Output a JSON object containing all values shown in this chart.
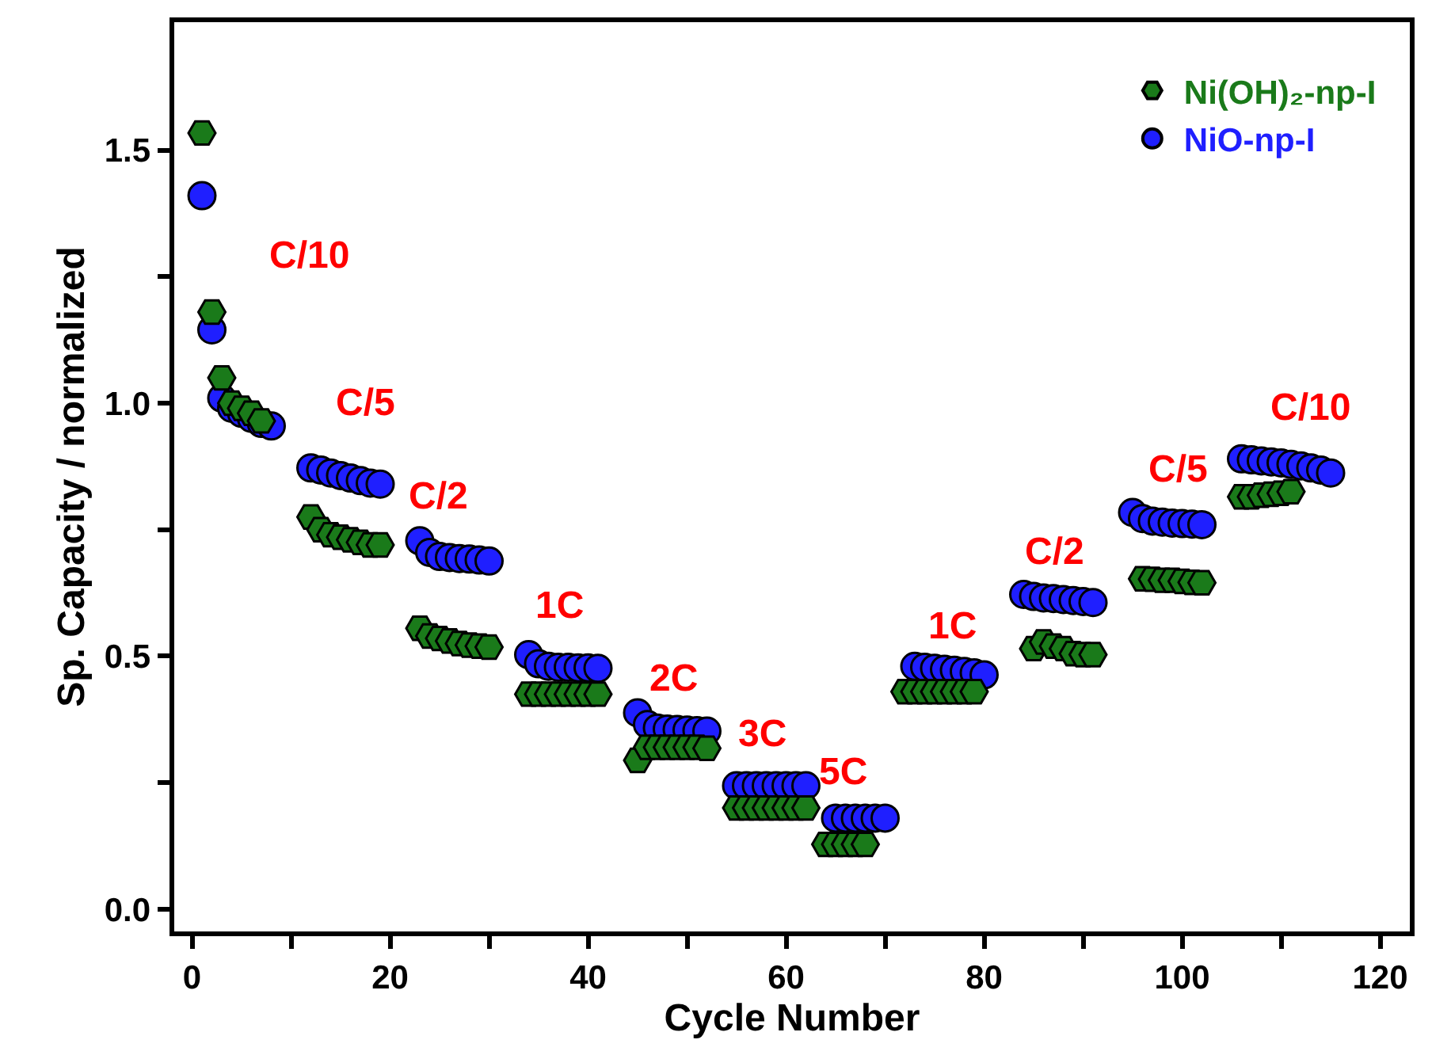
{
  "chart_data": {
    "type": "scatter",
    "xlabel": "Cycle Number",
    "ylabel": "Sp. Capacity / normalized",
    "xlim": [
      -1.8,
      123
    ],
    "ylim": [
      -0.044,
      1.753
    ],
    "xticks": [
      0,
      {
        "value": 10,
        "label": null
      },
      20,
      {
        "value": 30,
        "label": null
      },
      40,
      {
        "value": 50,
        "label": null
      },
      60,
      {
        "value": 70,
        "label": null
      },
      80,
      {
        "value": 90,
        "label": null
      },
      100,
      {
        "value": 110,
        "label": null
      },
      120
    ],
    "yticks": [
      {
        "value": 0,
        "label": "0.0"
      },
      {
        "value": 0.25,
        "label": null
      },
      0.5,
      {
        "value": 0.75,
        "label": null
      },
      {
        "value": 1,
        "label": "1.0"
      },
      {
        "value": 1.25,
        "label": null
      },
      1.5
    ],
    "grid": false,
    "legend": "top right",
    "series": [
      {
        "name": "Ni(OH)₂-np-I",
        "color": "#1a7a1a",
        "x": [
          1,
          2,
          3,
          4,
          5,
          6,
          7,
          12,
          13,
          14,
          15,
          16,
          17,
          18,
          19,
          23,
          24,
          25,
          26,
          27,
          28,
          29,
          30,
          34,
          35,
          36,
          37,
          38,
          39,
          40,
          41,
          45,
          46,
          47,
          48,
          49,
          50,
          51,
          52,
          55,
          56,
          57,
          58,
          59,
          60,
          61,
          62,
          64,
          65,
          66,
          67,
          68,
          72,
          73,
          74,
          75,
          76,
          77,
          78,
          79,
          85,
          86,
          87,
          88,
          89,
          90,
          91,
          96,
          97,
          98,
          99,
          100,
          101,
          102,
          106,
          107,
          108,
          109,
          110,
          111
        ],
        "values": [
          1.534,
          1.18,
          1.05,
          1.0,
          0.99,
          0.98,
          0.965,
          0.775,
          0.75,
          0.74,
          0.735,
          0.73,
          0.725,
          0.72,
          0.72,
          0.555,
          0.54,
          0.535,
          0.53,
          0.525,
          0.522,
          0.52,
          0.518,
          0.425,
          0.425,
          0.425,
          0.425,
          0.425,
          0.425,
          0.425,
          0.425,
          0.294,
          0.32,
          0.32,
          0.32,
          0.32,
          0.32,
          0.32,
          0.318,
          0.2,
          0.2,
          0.2,
          0.2,
          0.2,
          0.2,
          0.2,
          0.2,
          0.128,
          0.128,
          0.128,
          0.128,
          0.128,
          0.43,
          0.43,
          0.43,
          0.43,
          0.43,
          0.43,
          0.43,
          0.43,
          0.515,
          0.528,
          0.52,
          0.515,
          0.505,
          0.503,
          0.503,
          0.653,
          0.652,
          0.65,
          0.65,
          0.648,
          0.646,
          0.645,
          0.815,
          0.815,
          0.818,
          0.82,
          0.822,
          0.825
        ]
      },
      {
        "name": "NiO-np-I",
        "color": "#1f1fff",
        "marker": "circle",
        "x": [
          1,
          2,
          3,
          4,
          5,
          6,
          7,
          8,
          12,
          13,
          14,
          15,
          16,
          17,
          18,
          19,
          23,
          24,
          25,
          26,
          27,
          28,
          29,
          30,
          34,
          35,
          36,
          37,
          38,
          39,
          40,
          41,
          45,
          46,
          47,
          48,
          49,
          50,
          51,
          52,
          55,
          56,
          57,
          58,
          59,
          60,
          61,
          62,
          65,
          66,
          67,
          68,
          69,
          70,
          73,
          74,
          75,
          76,
          77,
          78,
          79,
          80,
          84,
          85,
          86,
          87,
          88,
          89,
          90,
          91,
          95,
          96,
          97,
          98,
          99,
          100,
          101,
          102,
          106,
          107,
          108,
          109,
          110,
          111,
          112,
          113,
          114,
          115
        ],
        "values": [
          1.41,
          1.145,
          1.01,
          0.99,
          0.98,
          0.97,
          0.96,
          0.955,
          0.872,
          0.868,
          0.862,
          0.857,
          0.852,
          0.847,
          0.842,
          0.84,
          0.728,
          0.705,
          0.697,
          0.695,
          0.693,
          0.692,
          0.69,
          0.688,
          0.503,
          0.485,
          0.48,
          0.478,
          0.478,
          0.477,
          0.477,
          0.476,
          0.388,
          0.365,
          0.358,
          0.356,
          0.355,
          0.354,
          0.353,
          0.352,
          0.244,
          0.244,
          0.244,
          0.244,
          0.244,
          0.244,
          0.244,
          0.244,
          0.18,
          0.18,
          0.18,
          0.18,
          0.18,
          0.18,
          0.48,
          0.478,
          0.476,
          0.474,
          0.472,
          0.47,
          0.467,
          0.463,
          0.622,
          0.618,
          0.615,
          0.614,
          0.612,
          0.61,
          0.608,
          0.606,
          0.784,
          0.772,
          0.767,
          0.765,
          0.763,
          0.762,
          0.761,
          0.76,
          0.89,
          0.888,
          0.886,
          0.884,
          0.882,
          0.879,
          0.876,
          0.872,
          0.868,
          0.862
        ]
      }
    ],
    "annotations": [
      "C/10",
      "C/5",
      "C/2",
      "1C",
      "2C",
      "3C",
      "5C",
      "1C",
      "C/2",
      "C/5",
      "C/10"
    ]
  }
}
